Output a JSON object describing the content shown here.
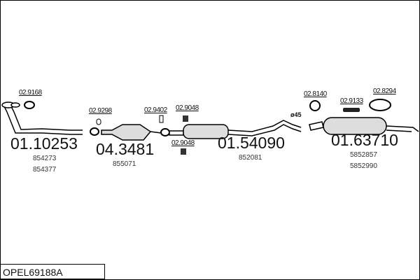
{
  "code": "OPEL69188A",
  "parts": [
    {
      "number": "01.10253",
      "refs": [
        "854273",
        "854377"
      ]
    },
    {
      "number": "04.3481",
      "refs": [
        "855071"
      ]
    },
    {
      "number": "01.54090",
      "refs": [
        "852081"
      ]
    },
    {
      "number": "01.63710",
      "refs": [
        "5852857",
        "5852990"
      ]
    }
  ],
  "accessories": [
    "02.9168",
    "02.9298",
    "02.9402",
    "02.9048",
    "02.9048",
    "02.8140",
    "02.9133",
    "02.8294"
  ],
  "diameter": "ø45"
}
